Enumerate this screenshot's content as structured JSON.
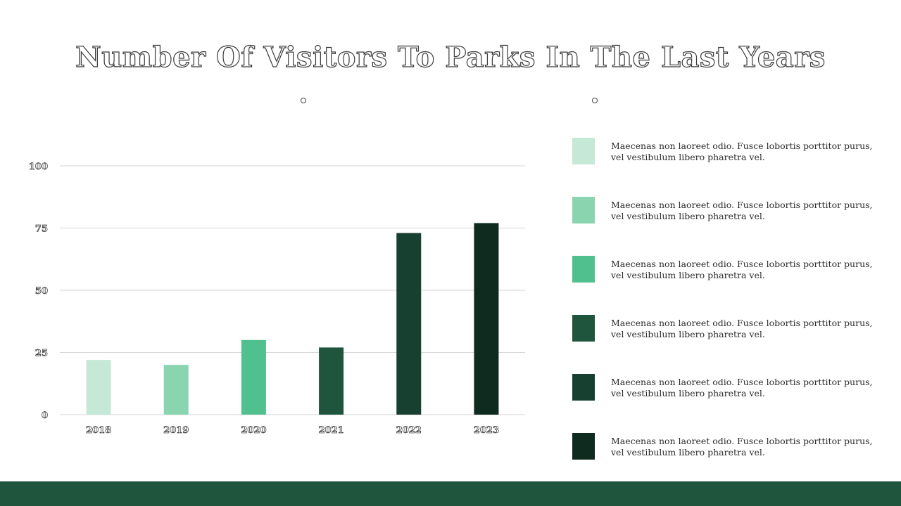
{
  "title": "Number Of Visitors To Parks In The Last Years",
  "chart_data": {
    "type": "bar",
    "title": "",
    "xlabel": "",
    "ylabel": "",
    "categories": [
      "2018",
      "2019",
      "2020",
      "2021",
      "2022",
      "2023"
    ],
    "values": [
      22,
      20,
      30,
      27,
      73,
      77
    ],
    "colors": [
      "#c5e8d7",
      "#8ad5b0",
      "#50c08e",
      "#1f553d",
      "#174030",
      "#0f2a1f"
    ],
    "ylim": [
      0,
      100
    ],
    "yticks": [
      0,
      25,
      50,
      75,
      100
    ],
    "grid": true
  },
  "legend": {
    "items": [
      {
        "text": "Maecenas non laoreet odio. Fusce lobortis porttitor purus, vel vestibulum libero pharetra vel.",
        "color": "#c5e8d7"
      },
      {
        "text": "Maecenas non laoreet odio. Fusce lobortis porttitor purus, vel vestibulum libero pharetra vel.",
        "color": "#8ad5b0"
      },
      {
        "text": "Maecenas non laoreet odio. Fusce lobortis porttitor purus, vel vestibulum libero pharetra vel.",
        "color": "#50c08e"
      },
      {
        "text": "Maecenas non laoreet odio. Fusce lobortis porttitor purus, vel vestibulum libero pharetra vel.",
        "color": "#1f553d"
      },
      {
        "text": "Maecenas non laoreet odio. Fusce lobortis porttitor purus, vel vestibulum libero pharetra vel.",
        "color": "#174030"
      },
      {
        "text": "Maecenas non laoreet odio. Fusce lobortis porttitor purus, vel vestibulum libero pharetra vel.",
        "color": "#0f2a1f"
      }
    ]
  },
  "colors": {
    "footer": "#1f553d",
    "grid": "#d6d6d6"
  }
}
